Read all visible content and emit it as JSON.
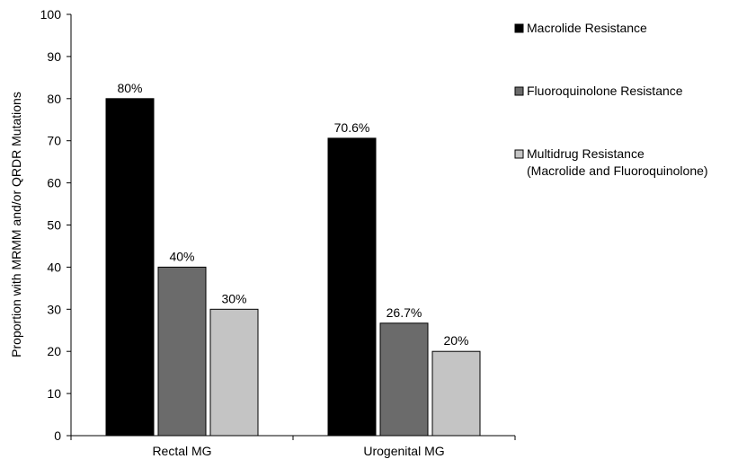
{
  "chart_data": {
    "type": "bar",
    "title": "",
    "xlabel": "",
    "ylabel": "Proportion with MRMM and/or QRDR Mutations",
    "ylim": [
      0,
      100
    ],
    "yticks": [
      0,
      10,
      20,
      30,
      40,
      50,
      60,
      70,
      80,
      90,
      100
    ],
    "categories": [
      "Rectal MG",
      "Urogenital MG"
    ],
    "grid": false,
    "legend_position": "right",
    "series": [
      {
        "name": "Macrolide Resistance",
        "values": [
          80,
          70.6
        ],
        "labels": [
          "80%",
          "70.6%"
        ],
        "color": "#000000"
      },
      {
        "name": "Fluoroquinolone Resistance",
        "values": [
          40,
          26.7
        ],
        "labels": [
          "40%",
          "26.7%"
        ],
        "color": "#6b6b6b"
      },
      {
        "name": "Multidrug Resistance",
        "name_line2": "(Macrolide and Fluoroquinolone)",
        "values": [
          30,
          20
        ],
        "labels": [
          "30%",
          "20%"
        ],
        "color": "#c4c4c4"
      }
    ]
  }
}
